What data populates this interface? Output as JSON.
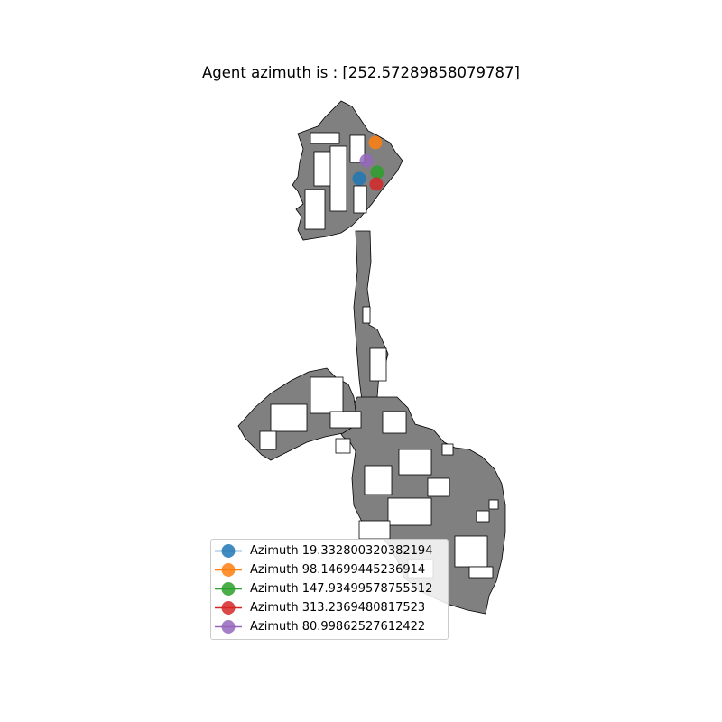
{
  "title": "Agent azimuth is : [252.57289858079787]",
  "chart_data": {
    "type": "scatter",
    "title": "Agent azimuth is : [252.57289858079787]",
    "grid": false,
    "axes_visible": false,
    "background": "top-down occupancy map (gray navigable area, white obstacles)",
    "map_fill_color": "#808080",
    "legend_position": "lower-left",
    "series": [
      {
        "name": "Azimuth 19.332800320382194",
        "color": "#1f77b4"
      },
      {
        "name": "Azimuth 98.14699445236914",
        "color": "#ff7f0e"
      },
      {
        "name": "Azimuth 147.93499578755512",
        "color": "#2ca02c"
      },
      {
        "name": "Azimuth 313.2369480817523",
        "color": "#d62728"
      },
      {
        "name": "Azimuth 80.99862527612422",
        "color": "#9467bd"
      }
    ]
  }
}
